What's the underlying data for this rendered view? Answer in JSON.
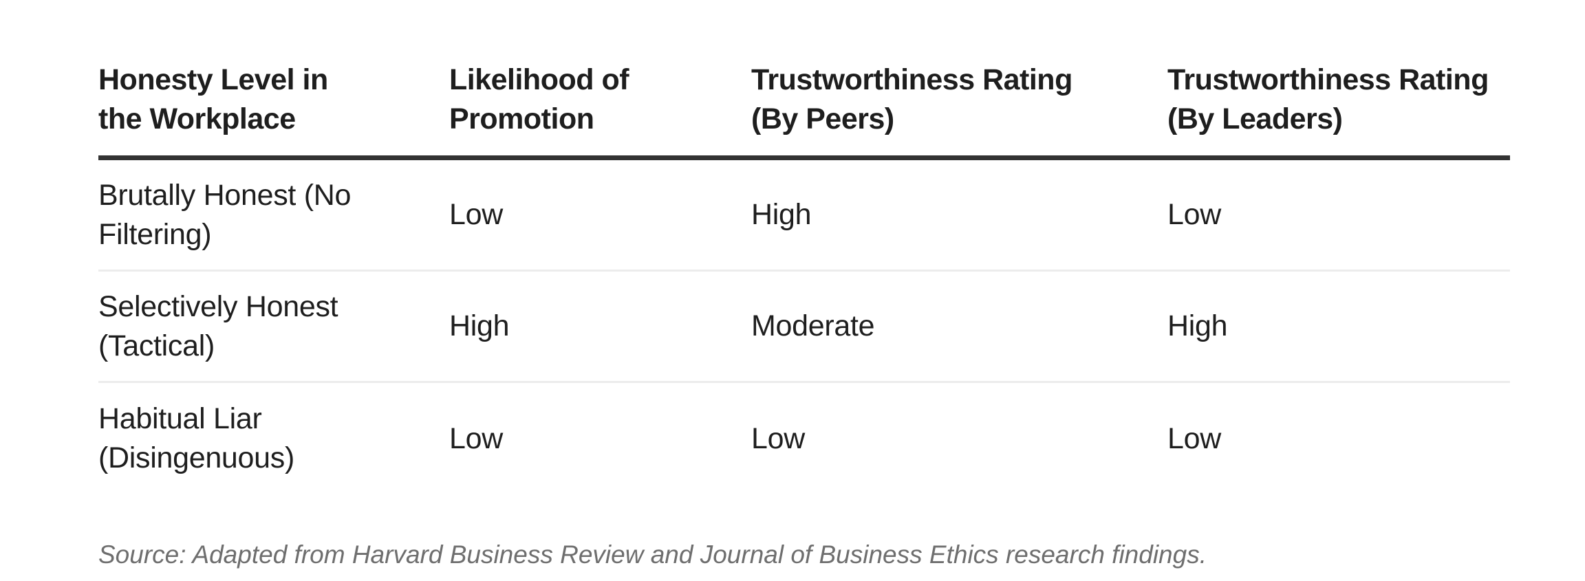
{
  "table": {
    "columns": [
      {
        "label": "Honesty Level in the Workplace",
        "lines": [
          "Honesty Level in",
          "the Workplace"
        ]
      },
      {
        "label": "Likelihood of Promotion",
        "lines": [
          "Likelihood of",
          "Promotion"
        ]
      },
      {
        "label": "Trustworthiness Rating (By Peers)",
        "lines": [
          "Trustworthiness Rating",
          "(By Peers)"
        ]
      },
      {
        "label": "Trustworthiness Rating (By Leaders)",
        "lines": [
          "Trustworthiness Rating",
          "(By Leaders)"
        ]
      }
    ],
    "rows": [
      {
        "label": "Brutally Honest (No Filtering)",
        "label_lines": [
          "Brutally Honest (No",
          "Filtering)"
        ],
        "values": [
          "Low",
          "High",
          "Low"
        ]
      },
      {
        "label": "Selectively Honest (Tactical)",
        "label_lines": [
          "Selectively Honest",
          "(Tactical)"
        ],
        "values": [
          "High",
          "Moderate",
          "High"
        ]
      },
      {
        "label": "Habitual Liar (Disingenuous)",
        "label_lines": [
          "Habitual Liar",
          "(Disingenuous)"
        ],
        "values": [
          "Low",
          "Low",
          "Low"
        ]
      }
    ]
  },
  "source_note": "Source: Adapted from Harvard Business Review and Journal of Business Ethics research findings.",
  "colors": {
    "background": "#ffffff",
    "text": "#1e1e1e",
    "header_rule": "#333333",
    "row_divider": "#ececec",
    "source_text": "#6e6e6e"
  }
}
